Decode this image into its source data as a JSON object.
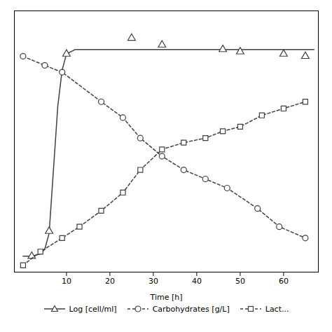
{
  "chart_data": {
    "type": "line",
    "xlabel": "Time [h]",
    "xlim": [
      -2,
      68
    ],
    "ylim": [
      -0.05,
      1.1
    ],
    "xticks": [
      10,
      20,
      30,
      40,
      50,
      60
    ],
    "yticks": [],
    "tick_labels": "x",
    "grid": false,
    "legend": "bottom",
    "color": "#404040",
    "series": [
      {
        "name": "Log [cell/ml]",
        "line_style": "solid",
        "marker": "triangle",
        "x": [
          0,
          2,
          4,
          5,
          6,
          7,
          8,
          9,
          10,
          12,
          15,
          20,
          30,
          40,
          50,
          60,
          67
        ],
        "values": [
          0.02,
          0.02,
          0.03,
          0.05,
          0.12,
          0.4,
          0.68,
          0.84,
          0.91,
          0.93,
          0.93,
          0.93,
          0.93,
          0.93,
          0.93,
          0.93,
          0.93
        ],
        "points": {
          "x": [
            2,
            6,
            10,
            25,
            32,
            46,
            50,
            60,
            65
          ],
          "values": [
            0.02,
            0.13,
            0.91,
            0.98,
            0.95,
            0.93,
            0.92,
            0.91,
            0.9
          ]
        }
      },
      {
        "name": "Carbohydrates [g/L]",
        "line_style": "dashed",
        "marker": "circle",
        "x": [
          0,
          5,
          9,
          18,
          23,
          27,
          32,
          37,
          42,
          47,
          54,
          59,
          65
        ],
        "values": [
          0.9,
          0.86,
          0.83,
          0.7,
          0.63,
          0.54,
          0.46,
          0.4,
          0.36,
          0.32,
          0.23,
          0.15,
          0.1
        ]
      },
      {
        "name": "Lact...",
        "line_style": "dashed",
        "marker": "square",
        "x": [
          0,
          4,
          9,
          13,
          18,
          23,
          27,
          32,
          37,
          42,
          46,
          50,
          55,
          60,
          65
        ],
        "values": [
          -0.02,
          0.04,
          0.1,
          0.15,
          0.22,
          0.3,
          0.4,
          0.49,
          0.52,
          0.54,
          0.57,
          0.59,
          0.64,
          0.67,
          0.7
        ]
      }
    ]
  }
}
